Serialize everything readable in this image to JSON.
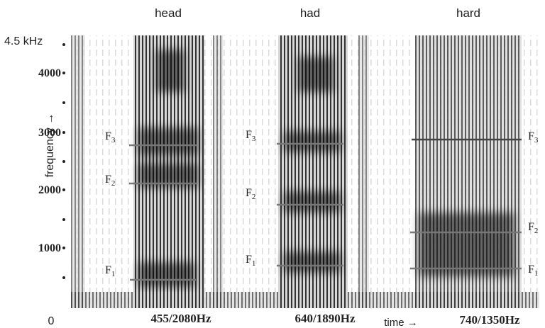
{
  "words": [
    "head",
    "had",
    "hard"
  ],
  "y_axis": {
    "top_label": "4.5 kHz",
    "ticks": [
      "4000",
      "3000",
      "2000",
      "1000"
    ],
    "zero": "0",
    "title": "frequency →"
  },
  "formant_labels": [
    [
      {
        "letter": "F",
        "index": "3"
      },
      {
        "letter": "F",
        "index": "2"
      },
      {
        "letter": "F",
        "index": "1"
      }
    ],
    [
      {
        "letter": "F",
        "index": "3"
      },
      {
        "letter": "F",
        "index": "2"
      },
      {
        "letter": "F",
        "index": "1"
      }
    ],
    [
      {
        "letter": "F",
        "index": "3"
      },
      {
        "letter": "F",
        "index": "2"
      },
      {
        "letter": "F",
        "index": "1"
      }
    ]
  ],
  "captions": [
    "455/2080Hz",
    "640/1890Hz",
    "740/1350Hz"
  ],
  "time_label": "time →"
}
